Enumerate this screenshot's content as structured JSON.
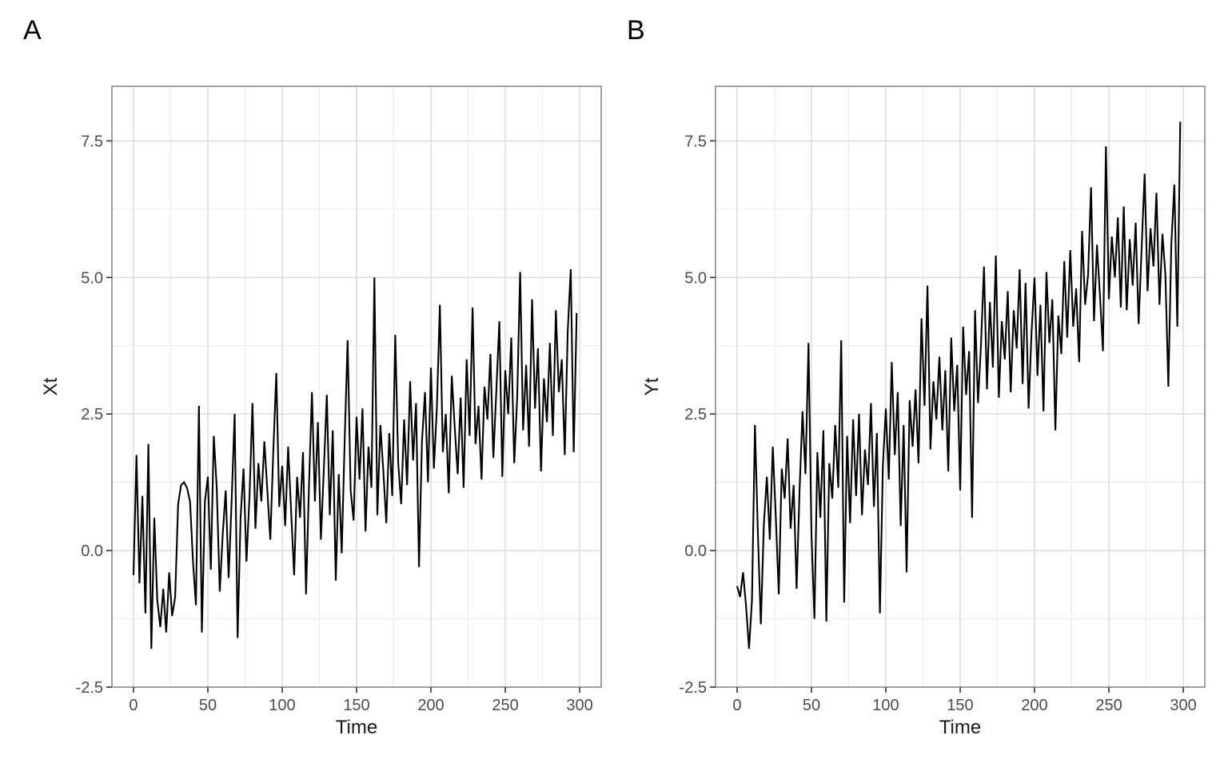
{
  "figure": {
    "background": "#FFFFFF"
  },
  "style": {
    "line_color": "#000000",
    "panel_border": "#8C8C8C",
    "grid_major": "#DCDCDC",
    "grid_minor": "#EBEBEB",
    "tick_mark_color": "#333333",
    "tick_label_color": "#4D4D4D",
    "axis_title_color": "#1A1A1A",
    "tag_color": "#000000"
  },
  "chart_data": [
    {
      "tag": "A",
      "type": "line",
      "title": "",
      "xlabel": "Time",
      "ylabel": "Xt",
      "xlim": [
        -14.5,
        314.5
      ],
      "ylim": [
        -2.5,
        8.5
      ],
      "grid": true,
      "legend_position": "none",
      "x_ticks": {
        "values": [
          0,
          50,
          100,
          150,
          200,
          250,
          300
        ],
        "labels": [
          "0",
          "50",
          "100",
          "150",
          "200",
          "250",
          "300"
        ]
      },
      "y_ticks": {
        "values": [
          -2.5,
          0.0,
          2.5,
          5.0,
          7.5
        ],
        "labels": [
          "-2.5",
          "0.0",
          "2.5",
          "5.0",
          "7.5"
        ]
      },
      "x_minor": [
        25,
        75,
        125,
        175,
        225,
        275
      ],
      "y_minor": [
        -1.25,
        1.25,
        3.75,
        6.25
      ],
      "series": [
        {
          "name": "Xt",
          "x_start": 0,
          "x_step": 2,
          "values": [
            -0.45,
            1.75,
            -0.6,
            1.0,
            -1.15,
            1.95,
            -1.8,
            0.6,
            -0.9,
            -1.4,
            -0.7,
            -1.5,
            -0.4,
            -1.2,
            -0.85,
            0.85,
            1.2,
            1.25,
            1.15,
            0.9,
            -0.2,
            -1.0,
            2.65,
            -1.5,
            0.9,
            1.35,
            -0.35,
            2.1,
            1.15,
            -0.75,
            0.3,
            1.1,
            -0.5,
            0.9,
            2.5,
            -1.6,
            0.6,
            1.5,
            -0.2,
            1.0,
            2.7,
            0.4,
            1.6,
            0.9,
            2.0,
            1.1,
            0.2,
            1.8,
            3.25,
            0.8,
            1.55,
            0.45,
            1.9,
            0.7,
            -0.45,
            1.35,
            0.6,
            1.8,
            -0.8,
            1.2,
            2.9,
            0.9,
            2.35,
            0.2,
            1.5,
            2.85,
            0.65,
            2.2,
            -0.55,
            1.4,
            -0.05,
            2.0,
            3.85,
            1.1,
            0.55,
            2.45,
            1.3,
            2.6,
            0.35,
            1.9,
            1.15,
            5.0,
            0.65,
            2.3,
            1.45,
            0.5,
            2.15,
            1.0,
            3.95,
            1.6,
            0.85,
            2.4,
            1.2,
            3.1,
            1.65,
            2.7,
            -0.3,
            2.0,
            2.9,
            1.25,
            3.35,
            1.5,
            2.6,
            4.5,
            1.8,
            2.5,
            1.05,
            3.2,
            2.25,
            1.4,
            2.8,
            1.15,
            3.5,
            2.1,
            4.45,
            1.95,
            2.65,
            1.3,
            3.0,
            2.4,
            3.6,
            1.7,
            2.95,
            4.2,
            1.35,
            3.3,
            2.5,
            3.9,
            1.6,
            2.8,
            5.1,
            2.2,
            3.4,
            1.9,
            4.6,
            2.6,
            3.7,
            1.45,
            3.15,
            2.35,
            3.8,
            2.1,
            4.4,
            2.9,
            3.5,
            1.75,
            4.0,
            5.15,
            1.8,
            4.35
          ]
        }
      ]
    },
    {
      "tag": "B",
      "type": "line",
      "title": "",
      "xlabel": "Time",
      "ylabel": "Yt",
      "xlim": [
        -14.5,
        314.5
      ],
      "ylim": [
        -2.5,
        8.5
      ],
      "grid": true,
      "legend_position": "none",
      "x_ticks": {
        "values": [
          0,
          50,
          100,
          150,
          200,
          250,
          300
        ],
        "labels": [
          "0",
          "50",
          "100",
          "150",
          "200",
          "250",
          "300"
        ]
      },
      "y_ticks": {
        "values": [
          -2.5,
          0.0,
          2.5,
          5.0,
          7.5
        ],
        "labels": [
          "-2.5",
          "0.0",
          "2.5",
          "5.0",
          "7.5"
        ]
      },
      "x_minor": [
        25,
        75,
        125,
        175,
        225,
        275
      ],
      "y_minor": [
        -1.25,
        1.25,
        3.75,
        6.25
      ],
      "series": [
        {
          "name": "Yt",
          "x_start": 0,
          "x_step": 2,
          "values": [
            -0.65,
            -0.85,
            -0.4,
            -1.0,
            -1.8,
            -0.9,
            2.3,
            0.3,
            -1.35,
            0.5,
            1.35,
            0.2,
            1.9,
            0.65,
            -0.8,
            1.5,
            0.95,
            2.05,
            0.4,
            1.2,
            -0.7,
            1.1,
            2.55,
            1.4,
            3.8,
            0.3,
            -1.25,
            1.8,
            0.6,
            2.2,
            -1.3,
            1.6,
            0.95,
            2.3,
            1.15,
            3.85,
            -0.95,
            2.1,
            0.5,
            2.4,
            1.0,
            2.5,
            0.65,
            1.85,
            1.2,
            2.7,
            0.8,
            2.15,
            -1.15,
            1.55,
            2.6,
            1.3,
            3.45,
            1.75,
            2.9,
            0.45,
            2.3,
            -0.4,
            2.75,
            1.9,
            2.95,
            1.6,
            4.25,
            2.65,
            4.85,
            1.85,
            3.1,
            2.4,
            3.55,
            2.2,
            3.3,
            1.45,
            3.9,
            2.55,
            3.4,
            1.1,
            4.1,
            2.85,
            3.65,
            0.6,
            4.4,
            2.7,
            3.75,
            5.2,
            2.95,
            4.55,
            3.35,
            5.4,
            2.8,
            4.2,
            3.5,
            4.75,
            2.9,
            4.4,
            3.7,
            5.15,
            3.05,
            4.9,
            2.6,
            4.0,
            5.0,
            3.2,
            4.5,
            2.55,
            5.1,
            3.8,
            4.6,
            2.2,
            4.3,
            3.6,
            5.3,
            3.9,
            5.5,
            4.1,
            4.8,
            3.45,
            5.85,
            4.5,
            5.05,
            6.65,
            4.2,
            5.6,
            4.65,
            3.65,
            7.4,
            4.6,
            5.75,
            5.0,
            6.1,
            4.45,
            6.3,
            4.4,
            5.7,
            4.85,
            6.0,
            4.15,
            5.5,
            6.9,
            4.75,
            5.9,
            5.2,
            6.55,
            4.5,
            5.8,
            5.05,
            3.0,
            5.6,
            6.7,
            4.1,
            7.85
          ]
        }
      ]
    }
  ]
}
